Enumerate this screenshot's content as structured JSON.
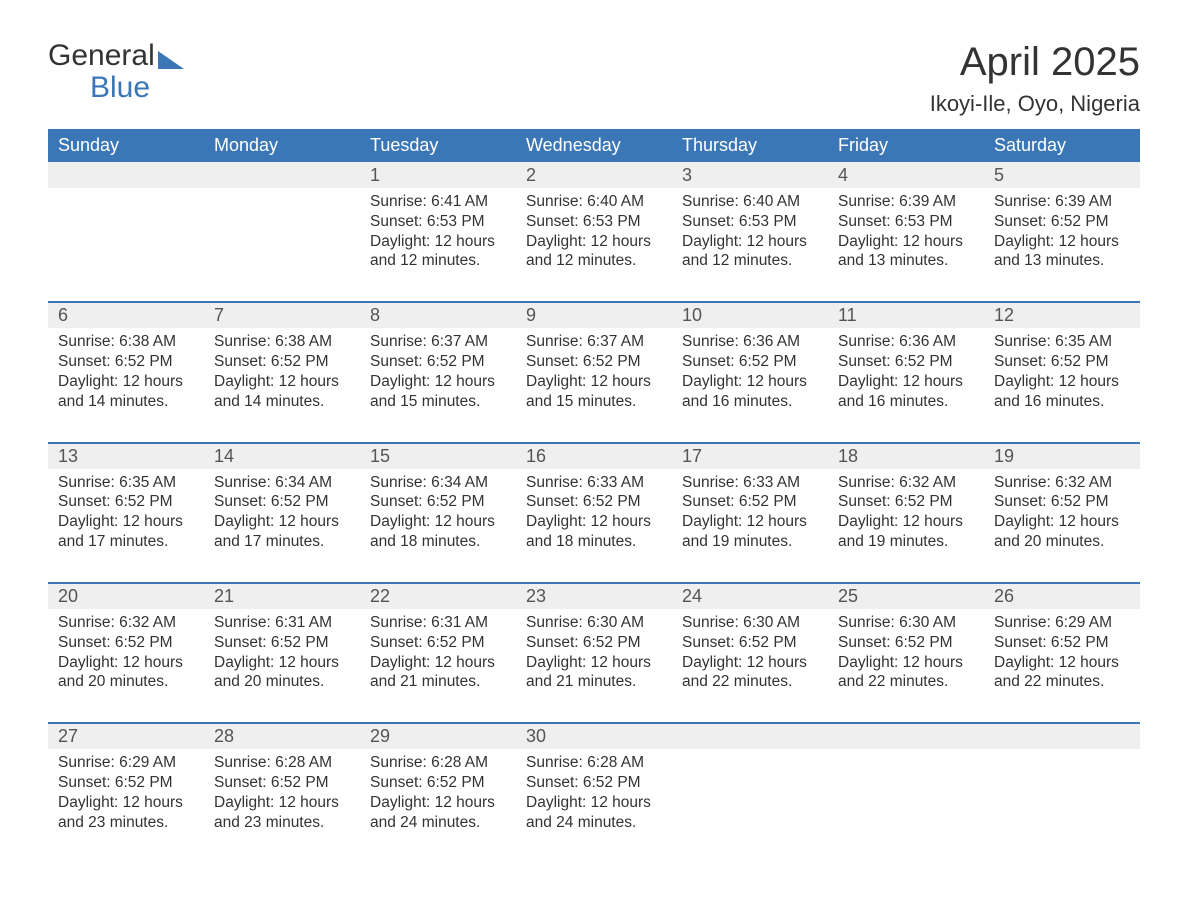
{
  "logo": {
    "word1": "General",
    "word2": "Blue"
  },
  "title": "April 2025",
  "location": "Ikoyi-Ile, Oyo, Nigeria",
  "colors": {
    "brand_blue": "#3b77b6",
    "header_text": "#ffffff",
    "daynum_bg": "#efefef",
    "body_text": "#333333",
    "background": "#ffffff"
  },
  "day_headers": [
    "Sunday",
    "Monday",
    "Tuesday",
    "Wednesday",
    "Thursday",
    "Friday",
    "Saturday"
  ],
  "weeks": [
    [
      null,
      null,
      {
        "n": "1",
        "sr": "Sunrise: 6:41 AM",
        "ss": "Sunset: 6:53 PM",
        "dl1": "Daylight: 12 hours",
        "dl2": "and 12 minutes."
      },
      {
        "n": "2",
        "sr": "Sunrise: 6:40 AM",
        "ss": "Sunset: 6:53 PM",
        "dl1": "Daylight: 12 hours",
        "dl2": "and 12 minutes."
      },
      {
        "n": "3",
        "sr": "Sunrise: 6:40 AM",
        "ss": "Sunset: 6:53 PM",
        "dl1": "Daylight: 12 hours",
        "dl2": "and 12 minutes."
      },
      {
        "n": "4",
        "sr": "Sunrise: 6:39 AM",
        "ss": "Sunset: 6:53 PM",
        "dl1": "Daylight: 12 hours",
        "dl2": "and 13 minutes."
      },
      {
        "n": "5",
        "sr": "Sunrise: 6:39 AM",
        "ss": "Sunset: 6:52 PM",
        "dl1": "Daylight: 12 hours",
        "dl2": "and 13 minutes."
      }
    ],
    [
      {
        "n": "6",
        "sr": "Sunrise: 6:38 AM",
        "ss": "Sunset: 6:52 PM",
        "dl1": "Daylight: 12 hours",
        "dl2": "and 14 minutes."
      },
      {
        "n": "7",
        "sr": "Sunrise: 6:38 AM",
        "ss": "Sunset: 6:52 PM",
        "dl1": "Daylight: 12 hours",
        "dl2": "and 14 minutes."
      },
      {
        "n": "8",
        "sr": "Sunrise: 6:37 AM",
        "ss": "Sunset: 6:52 PM",
        "dl1": "Daylight: 12 hours",
        "dl2": "and 15 minutes."
      },
      {
        "n": "9",
        "sr": "Sunrise: 6:37 AM",
        "ss": "Sunset: 6:52 PM",
        "dl1": "Daylight: 12 hours",
        "dl2": "and 15 minutes."
      },
      {
        "n": "10",
        "sr": "Sunrise: 6:36 AM",
        "ss": "Sunset: 6:52 PM",
        "dl1": "Daylight: 12 hours",
        "dl2": "and 16 minutes."
      },
      {
        "n": "11",
        "sr": "Sunrise: 6:36 AM",
        "ss": "Sunset: 6:52 PM",
        "dl1": "Daylight: 12 hours",
        "dl2": "and 16 minutes."
      },
      {
        "n": "12",
        "sr": "Sunrise: 6:35 AM",
        "ss": "Sunset: 6:52 PM",
        "dl1": "Daylight: 12 hours",
        "dl2": "and 16 minutes."
      }
    ],
    [
      {
        "n": "13",
        "sr": "Sunrise: 6:35 AM",
        "ss": "Sunset: 6:52 PM",
        "dl1": "Daylight: 12 hours",
        "dl2": "and 17 minutes."
      },
      {
        "n": "14",
        "sr": "Sunrise: 6:34 AM",
        "ss": "Sunset: 6:52 PM",
        "dl1": "Daylight: 12 hours",
        "dl2": "and 17 minutes."
      },
      {
        "n": "15",
        "sr": "Sunrise: 6:34 AM",
        "ss": "Sunset: 6:52 PM",
        "dl1": "Daylight: 12 hours",
        "dl2": "and 18 minutes."
      },
      {
        "n": "16",
        "sr": "Sunrise: 6:33 AM",
        "ss": "Sunset: 6:52 PM",
        "dl1": "Daylight: 12 hours",
        "dl2": "and 18 minutes."
      },
      {
        "n": "17",
        "sr": "Sunrise: 6:33 AM",
        "ss": "Sunset: 6:52 PM",
        "dl1": "Daylight: 12 hours",
        "dl2": "and 19 minutes."
      },
      {
        "n": "18",
        "sr": "Sunrise: 6:32 AM",
        "ss": "Sunset: 6:52 PM",
        "dl1": "Daylight: 12 hours",
        "dl2": "and 19 minutes."
      },
      {
        "n": "19",
        "sr": "Sunrise: 6:32 AM",
        "ss": "Sunset: 6:52 PM",
        "dl1": "Daylight: 12 hours",
        "dl2": "and 20 minutes."
      }
    ],
    [
      {
        "n": "20",
        "sr": "Sunrise: 6:32 AM",
        "ss": "Sunset: 6:52 PM",
        "dl1": "Daylight: 12 hours",
        "dl2": "and 20 minutes."
      },
      {
        "n": "21",
        "sr": "Sunrise: 6:31 AM",
        "ss": "Sunset: 6:52 PM",
        "dl1": "Daylight: 12 hours",
        "dl2": "and 20 minutes."
      },
      {
        "n": "22",
        "sr": "Sunrise: 6:31 AM",
        "ss": "Sunset: 6:52 PM",
        "dl1": "Daylight: 12 hours",
        "dl2": "and 21 minutes."
      },
      {
        "n": "23",
        "sr": "Sunrise: 6:30 AM",
        "ss": "Sunset: 6:52 PM",
        "dl1": "Daylight: 12 hours",
        "dl2": "and 21 minutes."
      },
      {
        "n": "24",
        "sr": "Sunrise: 6:30 AM",
        "ss": "Sunset: 6:52 PM",
        "dl1": "Daylight: 12 hours",
        "dl2": "and 22 minutes."
      },
      {
        "n": "25",
        "sr": "Sunrise: 6:30 AM",
        "ss": "Sunset: 6:52 PM",
        "dl1": "Daylight: 12 hours",
        "dl2": "and 22 minutes."
      },
      {
        "n": "26",
        "sr": "Sunrise: 6:29 AM",
        "ss": "Sunset: 6:52 PM",
        "dl1": "Daylight: 12 hours",
        "dl2": "and 22 minutes."
      }
    ],
    [
      {
        "n": "27",
        "sr": "Sunrise: 6:29 AM",
        "ss": "Sunset: 6:52 PM",
        "dl1": "Daylight: 12 hours",
        "dl2": "and 23 minutes."
      },
      {
        "n": "28",
        "sr": "Sunrise: 6:28 AM",
        "ss": "Sunset: 6:52 PM",
        "dl1": "Daylight: 12 hours",
        "dl2": "and 23 minutes."
      },
      {
        "n": "29",
        "sr": "Sunrise: 6:28 AM",
        "ss": "Sunset: 6:52 PM",
        "dl1": "Daylight: 12 hours",
        "dl2": "and 24 minutes."
      },
      {
        "n": "30",
        "sr": "Sunrise: 6:28 AM",
        "ss": "Sunset: 6:52 PM",
        "dl1": "Daylight: 12 hours",
        "dl2": "and 24 minutes."
      },
      null,
      null,
      null
    ]
  ]
}
